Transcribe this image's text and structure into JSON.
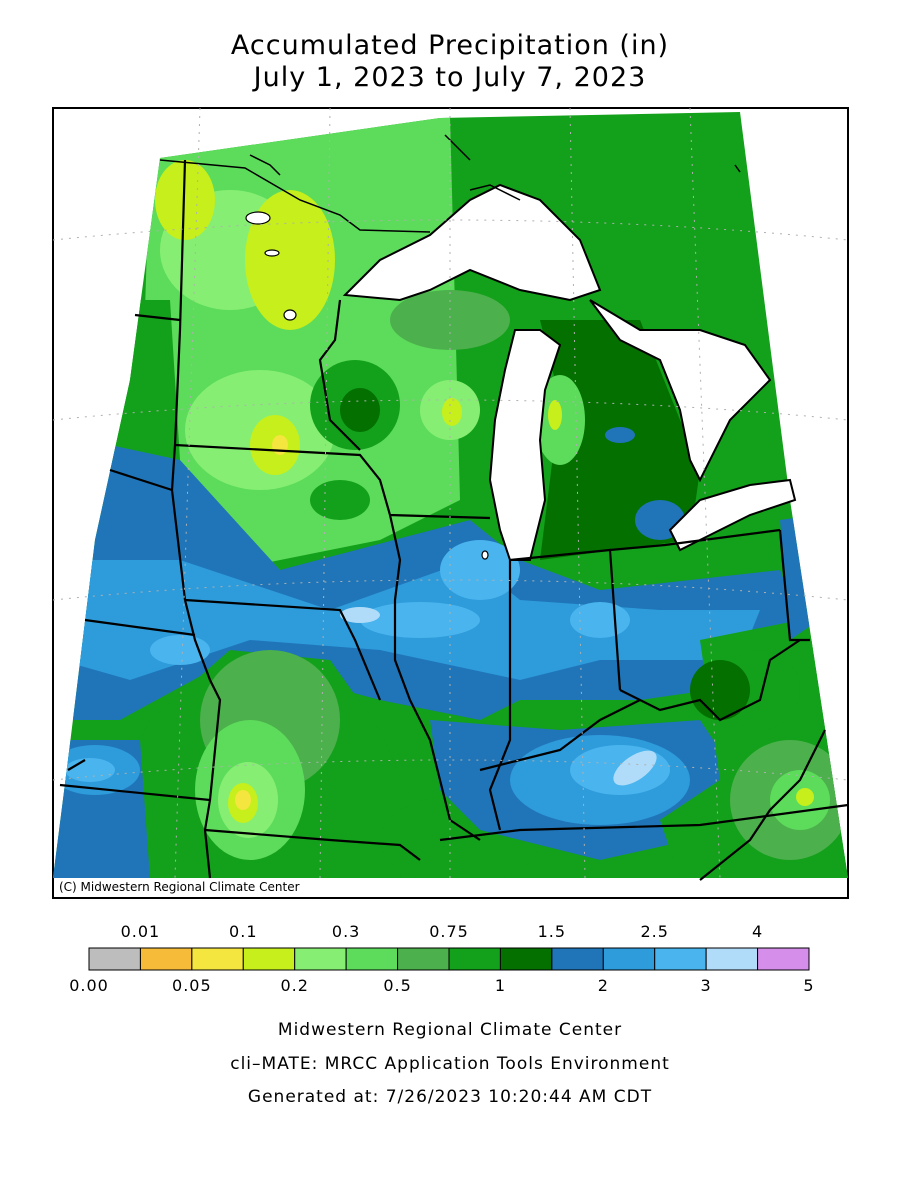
{
  "title": {
    "line1": "Accumulated Precipitation (in)",
    "line2": "July 1, 2023 to July 7, 2023"
  },
  "credit": "(C) Midwestern Regional Climate Center",
  "legend": {
    "colors": [
      "#bdbdbd",
      "#f7bb3a",
      "#f4e53f",
      "#c6ef1b",
      "#86ef73",
      "#5ddb5b",
      "#4cb04c",
      "#13a01a",
      "#037000",
      "#1f75b8",
      "#2e9bdb",
      "#4ab4ee",
      "#b1dcf9",
      "#d58ee9"
    ],
    "top_labels": [
      "0.01",
      "0.1",
      "0.3",
      "0.75",
      "1.5",
      "2.5",
      "4"
    ],
    "bottom_labels": [
      "0.00",
      "0.05",
      "0.2",
      "0.5",
      "1",
      "2",
      "3",
      "5"
    ]
  },
  "footer": {
    "line1": "Midwestern Regional Climate Center",
    "line2": "cli–MATE: MRCC Application Tools Environment",
    "line3": "Generated at: 7/26/2023 10:20:44 AM CDT"
  }
}
